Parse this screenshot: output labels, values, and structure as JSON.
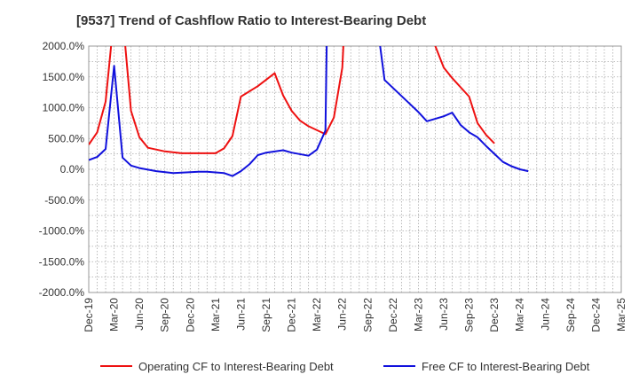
{
  "chart_data": {
    "type": "line",
    "title": "[9537]  Trend of Cashflow Ratio to Interest-Bearing Debt",
    "xlabel": "",
    "ylabel": "",
    "ylim": [
      -2000,
      2000
    ],
    "yticks": [
      2000,
      1500,
      1000,
      500,
      0,
      -500,
      -1000,
      -1500,
      -2000
    ],
    "ytick_labels": [
      "2000.0%",
      "1500.0%",
      "1000.0%",
      "500.0%",
      "0.0%",
      "-500.0%",
      "-1000.0%",
      "-1500.0%",
      "-2000.0%"
    ],
    "xtick_labels": [
      "Dec-19",
      "Mar-20",
      "Jun-20",
      "Sep-20",
      "Dec-20",
      "Mar-21",
      "Jun-21",
      "Sep-21",
      "Dec-21",
      "Mar-22",
      "Jun-22",
      "Sep-22",
      "Dec-22",
      "Mar-23",
      "Jun-23",
      "Sep-23",
      "Dec-23",
      "Mar-24",
      "Jun-24",
      "Sep-24",
      "Dec-24",
      "Mar-25"
    ],
    "x_unit": "months since Dec-19 (Dec-19 = 0, Mar-25 = 63)",
    "grid": true,
    "legend_position": "bottom",
    "series": [
      {
        "name": "Operating CF to Interest-Bearing Debt",
        "color": "#ee1111",
        "points": [
          [
            0,
            400
          ],
          [
            1,
            600
          ],
          [
            2,
            1100
          ],
          [
            3,
            2500
          ],
          [
            4,
            2500
          ],
          [
            5,
            950
          ],
          [
            6,
            520
          ],
          [
            7,
            350
          ],
          [
            9,
            290
          ],
          [
            11,
            260
          ],
          [
            13,
            260
          ],
          [
            15,
            260
          ],
          [
            16,
            340
          ],
          [
            17,
            540
          ],
          [
            18,
            1180
          ],
          [
            20,
            1350
          ],
          [
            22,
            1560
          ],
          [
            23,
            1200
          ],
          [
            24,
            950
          ],
          [
            25,
            790
          ],
          [
            26,
            700
          ],
          [
            28,
            570
          ],
          [
            29,
            840
          ],
          [
            30,
            1650
          ],
          [
            30.3,
            2500
          ],
          [
            40,
            2500
          ],
          [
            41,
            2000
          ],
          [
            42,
            1650
          ],
          [
            43,
            1480
          ],
          [
            45,
            1180
          ],
          [
            46,
            750
          ],
          [
            47,
            560
          ],
          [
            48,
            420
          ]
        ]
      },
      {
        "name": "Free CF to Interest-Bearing Debt",
        "color": "#1111dd",
        "points": [
          [
            0,
            150
          ],
          [
            1,
            200
          ],
          [
            2,
            330
          ],
          [
            3,
            1680
          ],
          [
            4,
            190
          ],
          [
            5,
            60
          ],
          [
            6,
            20
          ],
          [
            8,
            -30
          ],
          [
            10,
            -60
          ],
          [
            13,
            -40
          ],
          [
            14,
            -40
          ],
          [
            16,
            -60
          ],
          [
            17,
            -110
          ],
          [
            18,
            -30
          ],
          [
            19,
            80
          ],
          [
            20,
            230
          ],
          [
            21,
            270
          ],
          [
            23,
            310
          ],
          [
            24,
            270
          ],
          [
            26,
            220
          ],
          [
            27,
            320
          ],
          [
            28,
            630
          ],
          [
            28.2,
            2500
          ],
          [
            34,
            2500
          ],
          [
            35,
            1450
          ],
          [
            36,
            1320
          ],
          [
            38,
            1060
          ],
          [
            39,
            930
          ],
          [
            40,
            780
          ],
          [
            42,
            860
          ],
          [
            43,
            920
          ],
          [
            44,
            720
          ],
          [
            45,
            600
          ],
          [
            46,
            520
          ],
          [
            47,
            380
          ],
          [
            48,
            250
          ],
          [
            49,
            120
          ],
          [
            50,
            50
          ],
          [
            51,
            0
          ],
          [
            52,
            -30
          ]
        ]
      }
    ]
  }
}
